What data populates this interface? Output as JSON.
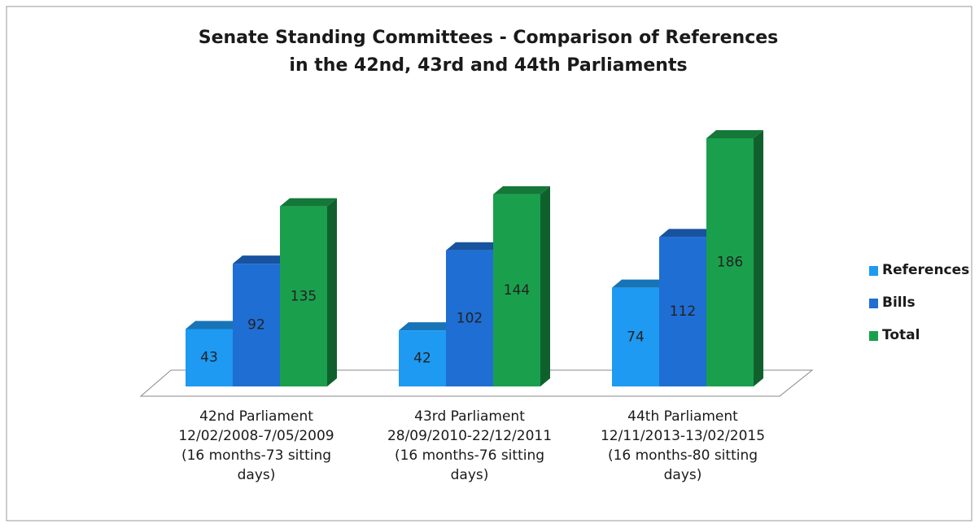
{
  "chart_data": {
    "type": "bar3d",
    "title": "Senate Standing Committees - Comparison of References\nin the 42nd, 43rd and 44th Parliaments",
    "categories": [
      "42nd Parliament\n12/02/2008-7/05/2009\n(16 months-73 sitting\ndays)",
      "43rd Parliament\n28/09/2010-22/12/2011\n(16 months-76 sitting\ndays)",
      "44th Parliament\n12/11/2013-13/02/2015\n(16 months-80 sitting\ndays)"
    ],
    "series": [
      {
        "name": "References",
        "color": "#1e9af2",
        "values": [
          43,
          42,
          74
        ]
      },
      {
        "name": "Bills",
        "color": "#1f6ed4",
        "values": [
          92,
          102,
          112
        ]
      },
      {
        "name": "Total",
        "color": "#1aa04c",
        "values": [
          135,
          144,
          186
        ]
      }
    ],
    "legend": "right"
  }
}
